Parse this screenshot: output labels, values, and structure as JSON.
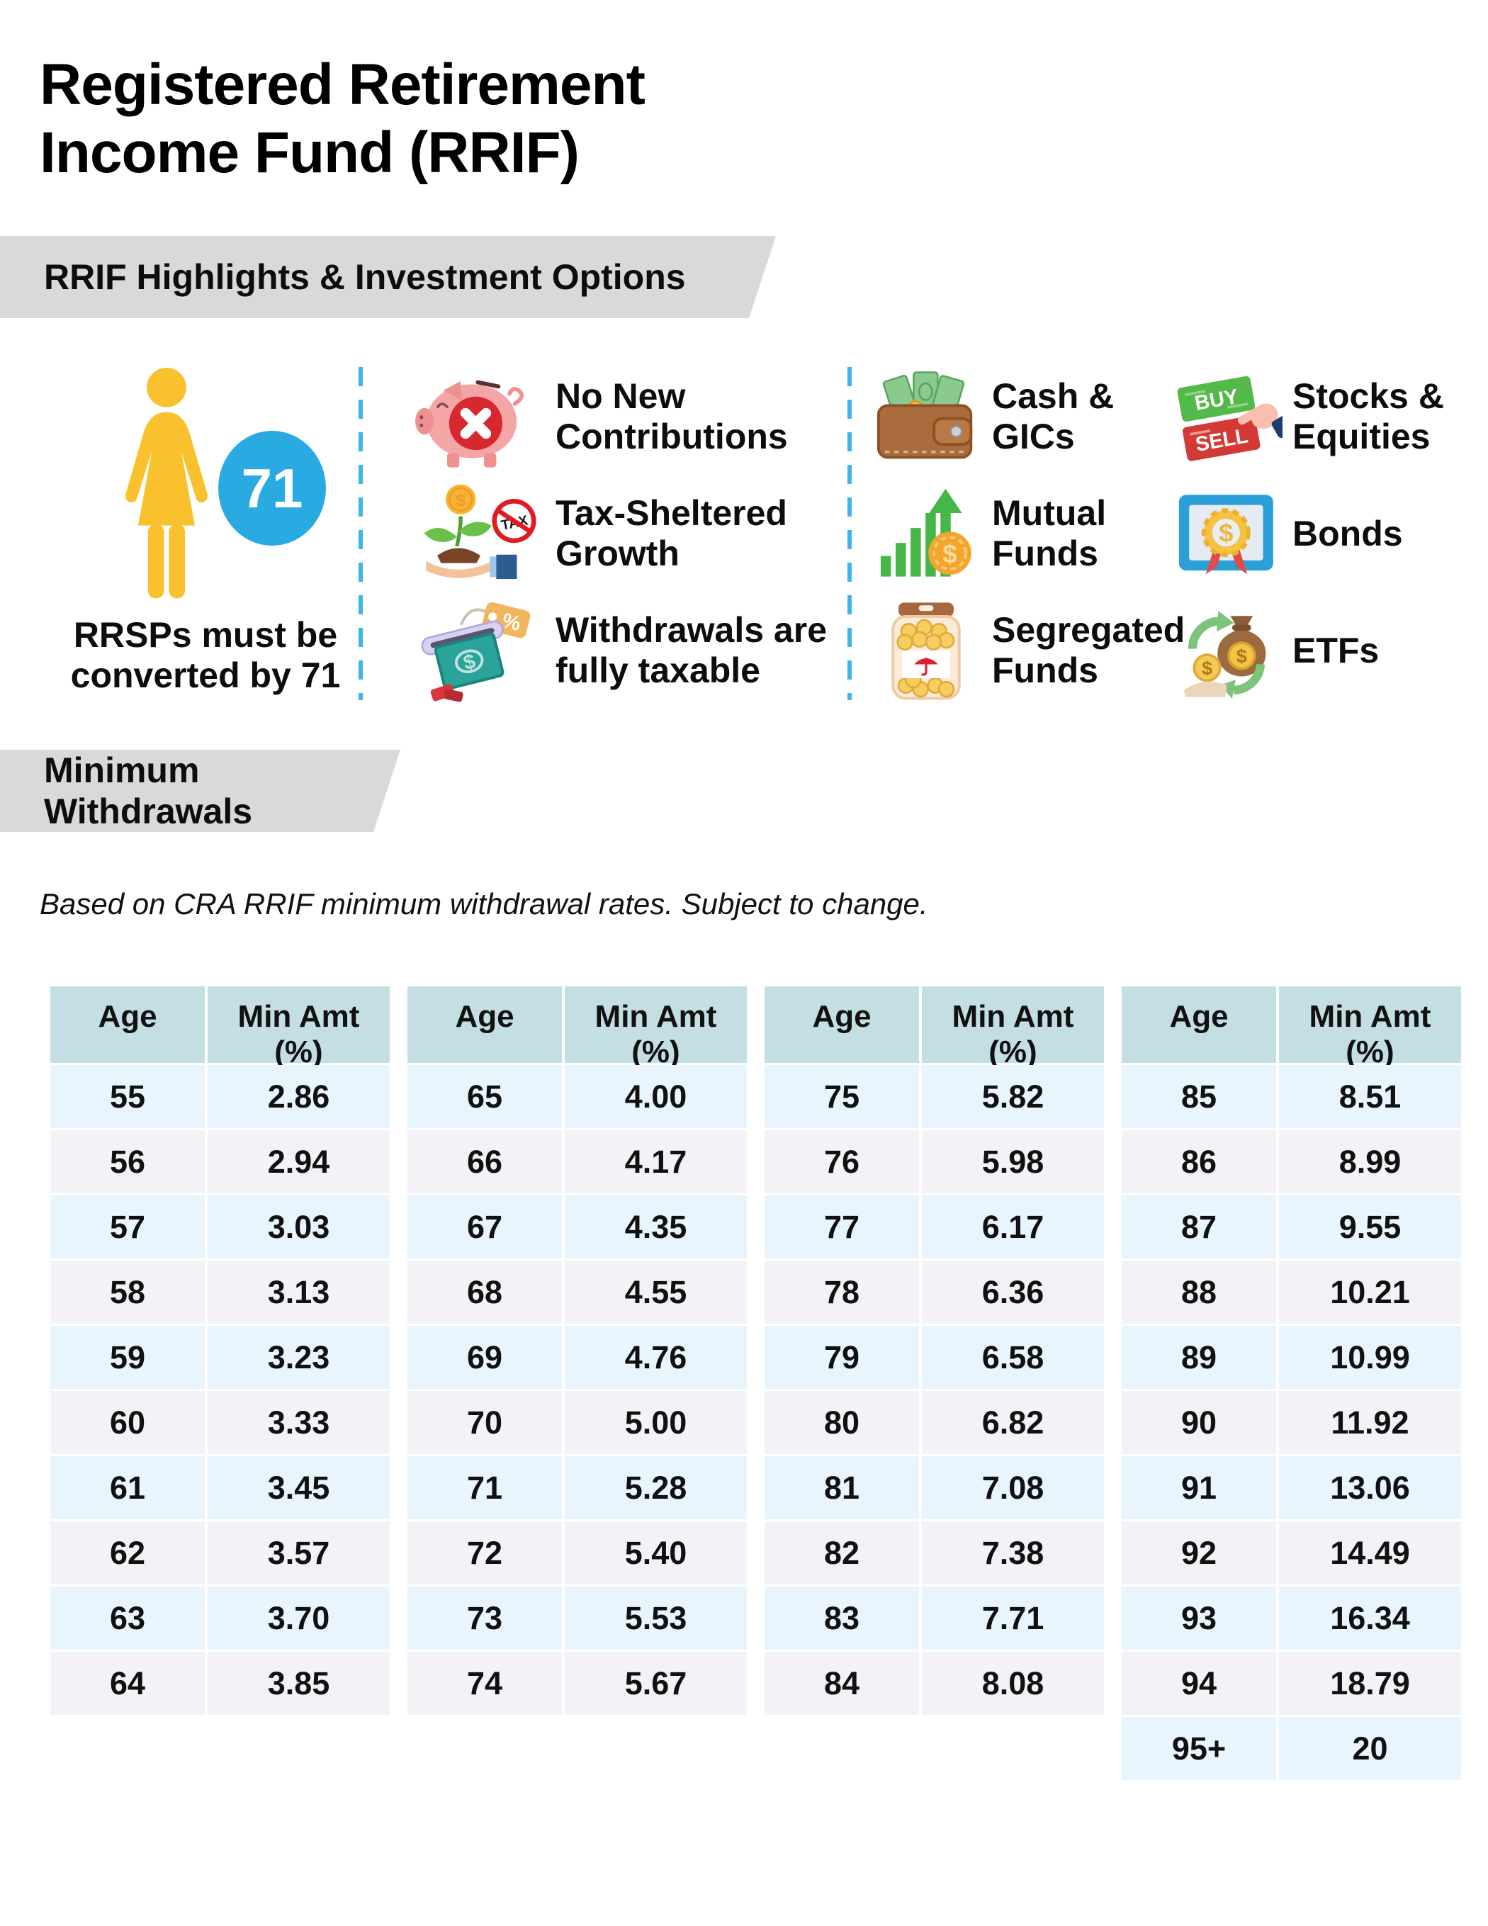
{
  "page": {
    "title": [
      "Registered Retirement",
      "Income Fund (RRIF)"
    ]
  },
  "highlights": {
    "banner": "RRIF Highlights & Investment Options",
    "age_badge": "71",
    "age_caption": [
      "RRSPs must be",
      "converted by 71"
    ],
    "features": [
      {
        "icon": "no-contributions-piggy-icon",
        "label": [
          "No New",
          "Contributions"
        ]
      },
      {
        "icon": "tax-sheltered-growth-icon",
        "label": [
          "Tax-Sheltered",
          "Growth"
        ]
      },
      {
        "icon": "taxable-withdrawals-icon",
        "label": [
          "Withdrawals are",
          "fully taxable"
        ]
      }
    ],
    "investments": [
      {
        "icon": "wallet-cash-icon",
        "label": [
          "Cash &",
          "GICs"
        ]
      },
      {
        "icon": "mutual-funds-chart-icon",
        "label": [
          "Mutual",
          "Funds"
        ]
      },
      {
        "icon": "segregated-funds-jar-icon",
        "label": [
          "Segregated",
          "Funds"
        ]
      },
      {
        "icon": "buy-sell-cards-icon",
        "label": [
          "Stocks &",
          "Equities"
        ]
      },
      {
        "icon": "bond-certificate-icon",
        "label": [
          "Bonds",
          ""
        ]
      },
      {
        "icon": "etf-money-bag-icon",
        "label": [
          "ETFs",
          ""
        ]
      }
    ],
    "icon_text": {
      "buy": "BUY",
      "sell": "SELL",
      "tax": "TAX",
      "dollar": "$",
      "percent": "%"
    }
  },
  "withdrawals": {
    "banner": "Minimum Withdrawals",
    "note": "Based on CRA RRIF minimum withdrawal rates. Subject to change.",
    "columns": {
      "age": "Age",
      "min_amt_line1": "Min Amt",
      "min_amt_line2": "(%)"
    },
    "tables": [
      {
        "rows": [
          [
            "55",
            "2.86"
          ],
          [
            "56",
            "2.94"
          ],
          [
            "57",
            "3.03"
          ],
          [
            "58",
            "3.13"
          ],
          [
            "59",
            "3.23"
          ],
          [
            "60",
            "3.33"
          ],
          [
            "61",
            "3.45"
          ],
          [
            "62",
            "3.57"
          ],
          [
            "63",
            "3.70"
          ],
          [
            "64",
            "3.85"
          ]
        ]
      },
      {
        "rows": [
          [
            "65",
            "4.00"
          ],
          [
            "66",
            "4.17"
          ],
          [
            "67",
            "4.35"
          ],
          [
            "68",
            "4.55"
          ],
          [
            "69",
            "4.76"
          ],
          [
            "70",
            "5.00"
          ],
          [
            "71",
            "5.28"
          ],
          [
            "72",
            "5.40"
          ],
          [
            "73",
            "5.53"
          ],
          [
            "74",
            "5.67"
          ]
        ]
      },
      {
        "rows": [
          [
            "75",
            "5.82"
          ],
          [
            "76",
            "5.98"
          ],
          [
            "77",
            "6.17"
          ],
          [
            "78",
            "6.36"
          ],
          [
            "79",
            "6.58"
          ],
          [
            "80",
            "6.82"
          ],
          [
            "81",
            "7.08"
          ],
          [
            "82",
            "7.38"
          ],
          [
            "83",
            "7.71"
          ],
          [
            "84",
            "8.08"
          ]
        ]
      },
      {
        "rows": [
          [
            "85",
            "8.51"
          ],
          [
            "86",
            "8.99"
          ],
          [
            "87",
            "9.55"
          ],
          [
            "88",
            "10.21"
          ],
          [
            "89",
            "10.99"
          ],
          [
            "90",
            "11.92"
          ],
          [
            "91",
            "13.06"
          ],
          [
            "92",
            "14.49"
          ],
          [
            "93",
            "16.34"
          ],
          [
            "94",
            "18.79"
          ],
          [
            "95+",
            "20"
          ]
        ]
      }
    ]
  },
  "colors": {
    "banner_gray": "#d9d9d9",
    "table_header_teal": "#c4dfe3",
    "row_light_blue": "#e8f5fd",
    "row_light_lavender": "#f5f2f7",
    "divider_blue": "#3db6e8",
    "figure_yellow": "#f8c12d",
    "badge_blue": "#29abe2"
  }
}
